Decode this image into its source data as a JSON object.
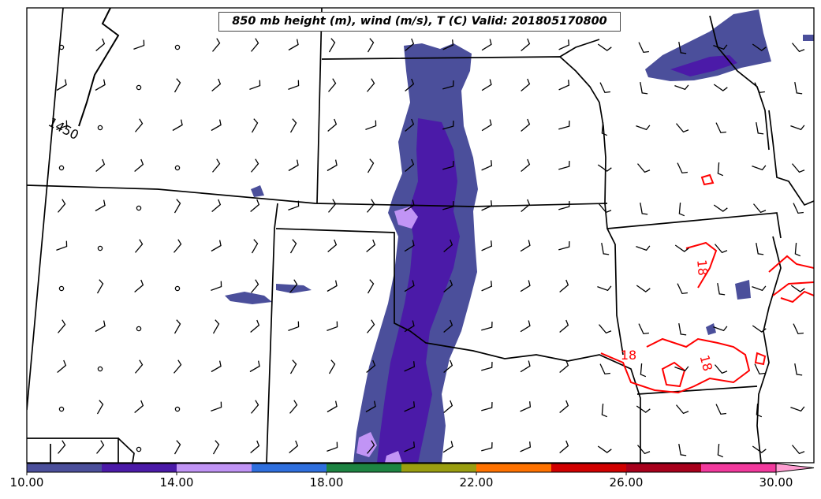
{
  "title": "850 mb height (m), wind (m/s), T (C) Valid: 201805170800",
  "contour_labels": {
    "height": "1450",
    "temp_a": "18",
    "temp_b": "18",
    "temp_c": "18"
  },
  "colorbar": {
    "tick_labels": [
      "10.00",
      "14.00",
      "18.00",
      "22.00",
      "26.00",
      "30.00"
    ],
    "tick_values": [
      10,
      14,
      18,
      22,
      26,
      30
    ],
    "range": [
      10,
      31
    ],
    "colors": [
      "#4b4f9b",
      "#4b1aa8",
      "#c194f5",
      "#2f6fde",
      "#1d8442",
      "#9a9e10",
      "#ff7200",
      "#d10000",
      "#a8001c",
      "#f2399d",
      "#ff9ed2"
    ]
  },
  "colors": {
    "height_contour": "#000000",
    "temp_contour": "#ff0000",
    "boundaries": "#000000"
  }
}
